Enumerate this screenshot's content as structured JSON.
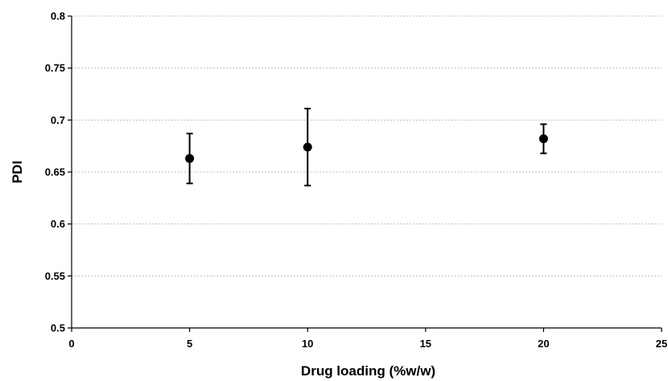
{
  "chart_data": {
    "type": "scatter",
    "title": "",
    "xlabel": "Drug loading (%w/w)",
    "ylabel": "PDI",
    "xlim": [
      0,
      25
    ],
    "ylim": [
      0.5,
      0.8
    ],
    "x_ticks": [
      "0",
      "5",
      "10",
      "15",
      "20",
      "25"
    ],
    "y_ticks": [
      "0.5",
      "0.55",
      "0.6",
      "0.65",
      "0.7",
      "0.75",
      "0.8"
    ],
    "grid": {
      "horizontal": true,
      "vertical": false,
      "style": "dotted"
    },
    "legend": "none",
    "marker_color": "#000000",
    "gridline_color": "#bfbfbf",
    "series": [
      {
        "x": [
          5,
          10,
          20
        ],
        "y": [
          0.663,
          0.674,
          0.682
        ],
        "error_low": [
          0.639,
          0.637,
          0.668
        ],
        "error_high": [
          0.687,
          0.711,
          0.696
        ]
      }
    ]
  }
}
